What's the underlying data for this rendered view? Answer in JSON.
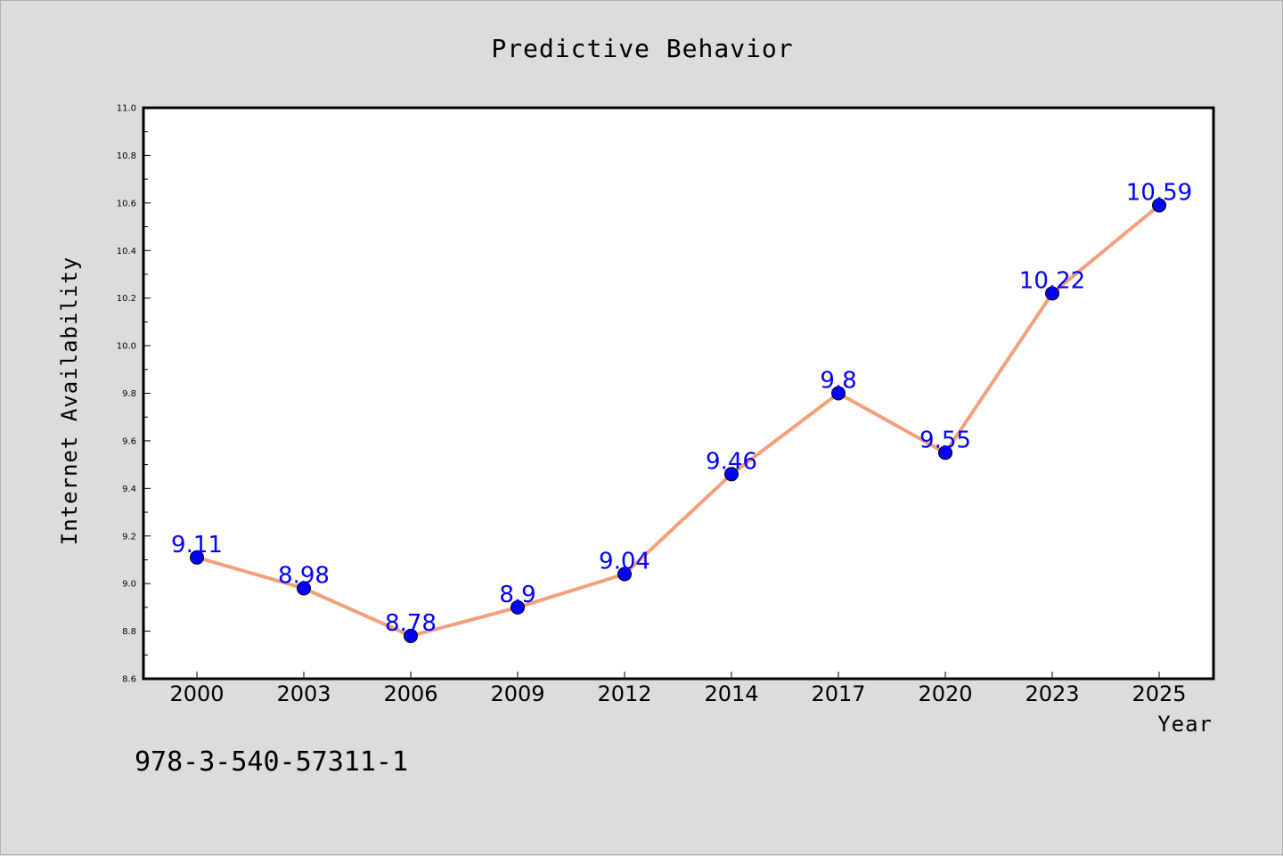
{
  "chart_data": {
    "type": "line",
    "title": "Predictive Behavior",
    "xlabel": "Year",
    "ylabel": "Internet Availability",
    "categories": [
      "2000",
      "2003",
      "2006",
      "2009",
      "2012",
      "2014",
      "2017",
      "2020",
      "2023",
      "2025"
    ],
    "series": [
      {
        "values": [
          9.11,
          8.98,
          8.78,
          8.9,
          9.04,
          9.46,
          9.8,
          9.55,
          10.22,
          10.59
        ],
        "labels": [
          "9.11",
          "8.98",
          "8.78",
          "8.9",
          "9.04",
          "9.46",
          "9.8",
          "9.55",
          "10.22",
          "10.59"
        ]
      }
    ],
    "ylim": [
      8.6,
      11.0
    ],
    "yticks": [
      "8.6",
      "8.8",
      "9.0",
      "9.2",
      "9.4",
      "9.6",
      "9.8",
      "10.0",
      "10.2",
      "10.4",
      "10.6",
      "10.8",
      "11.0"
    ],
    "grid": false,
    "legend": "none",
    "colors": {
      "line": "#f4a07a",
      "marker": "#0000ff",
      "label": "#0000ff",
      "background": "#dcdcdc",
      "plot_background": "#ffffff"
    }
  },
  "footer": {
    "code": "978-3-540-57311-1"
  }
}
